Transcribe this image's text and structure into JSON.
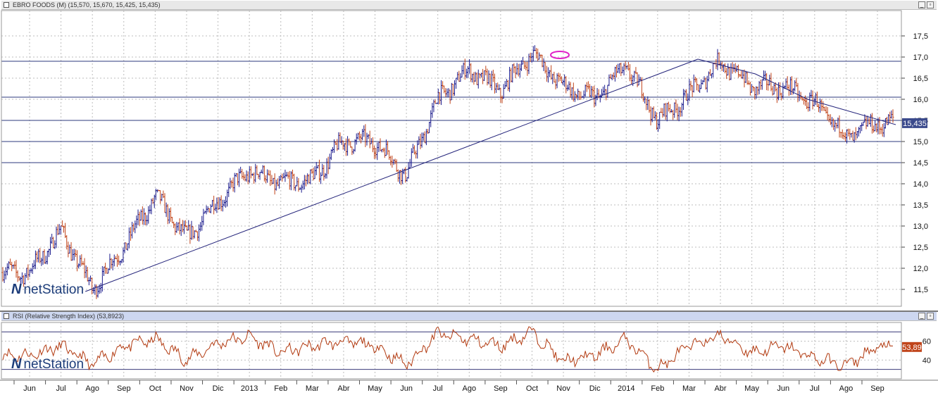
{
  "price_panel": {
    "title": "EBRO FOODS (M) (15,570, 15,670, 15,425, 15,435)",
    "last_label": "15,435"
  },
  "rsi_panel": {
    "title": "RSI (Relative Strength Index) (53,8923)",
    "last_label": "53,89"
  },
  "logo_text": "netStation",
  "colors": {
    "up_bar": "#1a1a8c",
    "down_bar": "#c0441a",
    "trend_line": "#23237a",
    "rsi_line": "#b23a10",
    "highlight": "#e020c8",
    "last_label_bg": "#3b4a8c",
    "rsi_label_bg": "#c0441a"
  },
  "chart_data": [
    {
      "type": "ohlc",
      "x_tick_labels": [
        "Jun",
        "Jul",
        "Ago",
        "Sep",
        "Oct",
        "Nov",
        "Dic",
        "2013",
        "Feb",
        "Mar",
        "Abr",
        "May",
        "Jun",
        "Jul",
        "Ago",
        "Sep",
        "Oct",
        "Nov",
        "Dic",
        "2014",
        "Feb",
        "Mar",
        "Abr",
        "May",
        "Jun",
        "Jul",
        "Ago",
        "Sep"
      ],
      "y_tick_labels": [
        "11,5",
        "12,0",
        "12,5",
        "13,0",
        "13,5",
        "14,0",
        "14,5",
        "15,0",
        "15,5",
        "16,0",
        "16,5",
        "17,0",
        "17,5"
      ],
      "ylim": [
        11.1,
        18.1
      ],
      "horizontal_lines": [
        16.9,
        16.05,
        15.5,
        15.0,
        14.5
      ],
      "key_points": [
        {
          "date": "Jun",
          "close": 11.9
        },
        {
          "date": "Jul",
          "close": 12.9
        },
        {
          "date": "Ago",
          "close": 11.5
        },
        {
          "date": "Sep",
          "close": 12.5
        },
        {
          "date": "Oct",
          "close": 13.7
        },
        {
          "date": "Nov",
          "close": 12.7
        },
        {
          "date": "Dic",
          "close": 13.6
        },
        {
          "date": "2013",
          "close": 14.3
        },
        {
          "date": "Feb",
          "close": 14.0
        },
        {
          "date": "Mar",
          "close": 14.1
        },
        {
          "date": "Abr",
          "close": 15.0
        },
        {
          "date": "May",
          "close": 15.0
        },
        {
          "date": "Jun",
          "close": 14.2
        },
        {
          "date": "Jul",
          "close": 16.0
        },
        {
          "date": "Ago",
          "close": 16.7
        },
        {
          "date": "Sep",
          "close": 16.2
        },
        {
          "date": "Oct",
          "close": 17.1
        },
        {
          "date": "Nov",
          "close": 16.3
        },
        {
          "date": "Dic",
          "close": 16.0
        },
        {
          "date": "2014",
          "close": 16.8
        },
        {
          "date": "Feb",
          "close": 15.5
        },
        {
          "date": "Mar",
          "close": 16.1
        },
        {
          "date": "Abr",
          "close": 16.9
        },
        {
          "date": "May",
          "close": 16.3
        },
        {
          "date": "Jun",
          "close": 16.3
        },
        {
          "date": "Jul",
          "close": 15.9
        },
        {
          "date": "Ago",
          "close": 15.1
        },
        {
          "date": "Sep",
          "close": 15.435
        }
      ],
      "last_close": 15.435
    },
    {
      "type": "line",
      "name": "RSI",
      "y_tick_labels": [
        "40",
        "60"
      ],
      "ylim": [
        20,
        80
      ],
      "reference_lines": [
        70,
        30
      ],
      "key_points": [
        {
          "date": "Jun",
          "value": 45
        },
        {
          "date": "Jul",
          "value": 55
        },
        {
          "date": "Ago",
          "value": 35
        },
        {
          "date": "Sep",
          "value": 55
        },
        {
          "date": "Oct",
          "value": 62
        },
        {
          "date": "Nov",
          "value": 40
        },
        {
          "date": "Dic",
          "value": 58
        },
        {
          "date": "2013",
          "value": 65
        },
        {
          "date": "Feb",
          "value": 48
        },
        {
          "date": "Mar",
          "value": 55
        },
        {
          "date": "Abr",
          "value": 60
        },
        {
          "date": "May",
          "value": 55
        },
        {
          "date": "Jun",
          "value": 35
        },
        {
          "date": "Jul",
          "value": 68
        },
        {
          "date": "Ago",
          "value": 62
        },
        {
          "date": "Sep",
          "value": 55
        },
        {
          "date": "Oct",
          "value": 70
        },
        {
          "date": "Nov",
          "value": 38
        },
        {
          "date": "Dic",
          "value": 45
        },
        {
          "date": "2014",
          "value": 62
        },
        {
          "date": "Feb",
          "value": 30
        },
        {
          "date": "Mar",
          "value": 55
        },
        {
          "date": "Abr",
          "value": 66
        },
        {
          "date": "May",
          "value": 48
        },
        {
          "date": "Jun",
          "value": 55
        },
        {
          "date": "Jul",
          "value": 42
        },
        {
          "date": "Ago",
          "value": 34
        },
        {
          "date": "Sep",
          "value": 53.89
        }
      ],
      "last_value": 53.89
    }
  ]
}
